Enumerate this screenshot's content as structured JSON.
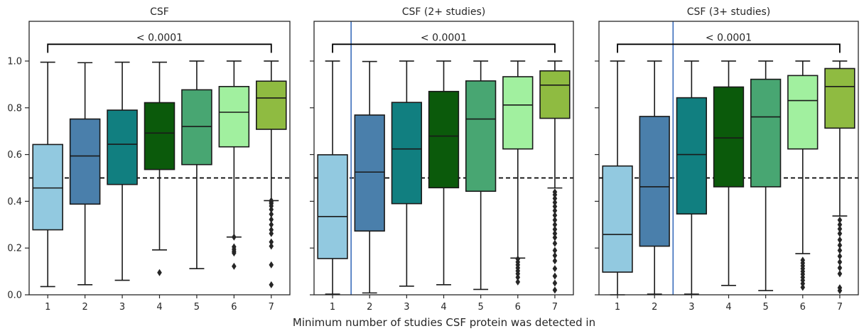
{
  "xlabel": "Minimum number of studies CSF protein was detected in",
  "colors": {
    "boxes": [
      "#92c9e0",
      "#4a7fab",
      "#117f80",
      "#0b5a0b",
      "#48a672",
      "#a1f09f",
      "#8fbb41"
    ],
    "threshold_line": "#000000",
    "vline": "#3a6dbb",
    "box_edge": "#1a1a1a"
  },
  "chart_data": [
    {
      "type": "box",
      "title": "CSF",
      "categories": [
        "1",
        "2",
        "3",
        "4",
        "5",
        "6",
        "7"
      ],
      "ylim": [
        0,
        1.17
      ],
      "yticks": [
        0.0,
        0.2,
        0.4,
        0.6,
        0.8,
        1.0
      ],
      "ytick_labels": [
        "0.0",
        "0.2",
        "0.4",
        "0.6",
        "0.8",
        "1.0"
      ],
      "threshold": 0.5,
      "vline_after_category": null,
      "significance": {
        "label": "< 0.0001",
        "from": "1",
        "to": "7",
        "y": 1.09
      },
      "boxes": [
        {
          "whisker_low": 0.035,
          "q1": 0.278,
          "median": 0.457,
          "q3": 0.643,
          "whisker_high": 0.995,
          "outliers": []
        },
        {
          "whisker_low": 0.043,
          "q1": 0.388,
          "median": 0.594,
          "q3": 0.752,
          "whisker_high": 0.993,
          "outliers": []
        },
        {
          "whisker_low": 0.062,
          "q1": 0.472,
          "median": 0.644,
          "q3": 0.79,
          "whisker_high": 0.995,
          "outliers": []
        },
        {
          "whisker_low": 0.192,
          "q1": 0.536,
          "median": 0.692,
          "q3": 0.822,
          "whisker_high": 0.995,
          "outliers": [
            0.095
          ]
        },
        {
          "whisker_low": 0.112,
          "q1": 0.557,
          "median": 0.72,
          "q3": 0.877,
          "whisker_high": 1.0,
          "outliers": []
        },
        {
          "whisker_low": 0.247,
          "q1": 0.633,
          "median": 0.781,
          "q3": 0.891,
          "whisker_high": 1.0,
          "outliers": [
            0.122,
            0.179,
            0.186,
            0.195,
            0.205,
            0.247
          ]
        },
        {
          "whisker_low": 0.403,
          "q1": 0.708,
          "median": 0.842,
          "q3": 0.914,
          "whisker_high": 1.0,
          "outliers": [
            0.043,
            0.128,
            0.208,
            0.226,
            0.262,
            0.278,
            0.3,
            0.322,
            0.345,
            0.365,
            0.38,
            0.39,
            0.397,
            0.403
          ]
        }
      ]
    },
    {
      "type": "box",
      "title": "CSF (2+ studies)",
      "categories": [
        "1",
        "2",
        "3",
        "4",
        "5",
        "6",
        "7"
      ],
      "ylim": [
        0,
        1.17
      ],
      "yticks": [
        0.0,
        0.2,
        0.4,
        0.6,
        0.8,
        1.0
      ],
      "ytick_labels": [],
      "threshold": 0.5,
      "vline_after_category": 1,
      "significance": {
        "label": "< 0.0001",
        "from": "1",
        "to": "7",
        "y": 1.09
      },
      "boxes": [
        {
          "whisker_low": 0.003,
          "q1": 0.155,
          "median": 0.335,
          "q3": 0.599,
          "whisker_high": 1.0,
          "outliers": []
        },
        {
          "whisker_low": 0.008,
          "q1": 0.273,
          "median": 0.525,
          "q3": 0.769,
          "whisker_high": 0.998,
          "outliers": []
        },
        {
          "whisker_low": 0.037,
          "q1": 0.39,
          "median": 0.624,
          "q3": 0.823,
          "whisker_high": 1.0,
          "outliers": []
        },
        {
          "whisker_low": 0.043,
          "q1": 0.458,
          "median": 0.679,
          "q3": 0.87,
          "whisker_high": 1.0,
          "outliers": []
        },
        {
          "whisker_low": 0.023,
          "q1": 0.443,
          "median": 0.752,
          "q3": 0.915,
          "whisker_high": 1.0,
          "outliers": []
        },
        {
          "whisker_low": 0.157,
          "q1": 0.624,
          "median": 0.812,
          "q3": 0.933,
          "whisker_high": 1.0,
          "outliers": [
            0.055,
            0.075,
            0.09,
            0.102,
            0.115,
            0.128,
            0.14,
            0.153
          ]
        },
        {
          "whisker_low": 0.457,
          "q1": 0.755,
          "median": 0.897,
          "q3": 0.958,
          "whisker_high": 1.0,
          "outliers": [
            0.02,
            0.05,
            0.08,
            0.112,
            0.145,
            0.168,
            0.19,
            0.22,
            0.245,
            0.262,
            0.28,
            0.3,
            0.32,
            0.34,
            0.36,
            0.378,
            0.395,
            0.412,
            0.428,
            0.44
          ]
        }
      ]
    },
    {
      "type": "box",
      "title": "CSF (3+ studies)",
      "categories": [
        "1",
        "2",
        "3",
        "4",
        "5",
        "6",
        "7"
      ],
      "ylim": [
        0,
        1.17
      ],
      "yticks": [
        0.0,
        0.2,
        0.4,
        0.6,
        0.8,
        1.0
      ],
      "ytick_labels": [],
      "threshold": 0.5,
      "vline_after_category": 2,
      "significance": {
        "label": "< 0.0001",
        "from": "1",
        "to": "7",
        "y": 1.09
      },
      "boxes": [
        {
          "whisker_low": 0.0,
          "q1": 0.097,
          "median": 0.258,
          "q3": 0.551,
          "whisker_high": 1.0,
          "outliers": []
        },
        {
          "whisker_low": 0.003,
          "q1": 0.208,
          "median": 0.462,
          "q3": 0.763,
          "whisker_high": 1.0,
          "outliers": []
        },
        {
          "whisker_low": 0.003,
          "q1": 0.346,
          "median": 0.6,
          "q3": 0.843,
          "whisker_high": 1.0,
          "outliers": []
        },
        {
          "whisker_low": 0.04,
          "q1": 0.462,
          "median": 0.671,
          "q3": 0.889,
          "whisker_high": 1.0,
          "outliers": []
        },
        {
          "whisker_low": 0.018,
          "q1": 0.462,
          "median": 0.761,
          "q3": 0.922,
          "whisker_high": 1.0,
          "outliers": []
        },
        {
          "whisker_low": 0.176,
          "q1": 0.624,
          "median": 0.831,
          "q3": 0.938,
          "whisker_high": 1.0,
          "outliers": [
            0.032,
            0.048,
            0.062,
            0.075,
            0.088,
            0.1,
            0.112,
            0.124,
            0.136,
            0.148
          ]
        },
        {
          "whisker_low": 0.337,
          "q1": 0.713,
          "median": 0.891,
          "q3": 0.968,
          "whisker_high": 1.0,
          "outliers": [
            0.018,
            0.03,
            0.09,
            0.115,
            0.14,
            0.165,
            0.19,
            0.212,
            0.235,
            0.262,
            0.282,
            0.3,
            0.32
          ]
        }
      ]
    }
  ]
}
